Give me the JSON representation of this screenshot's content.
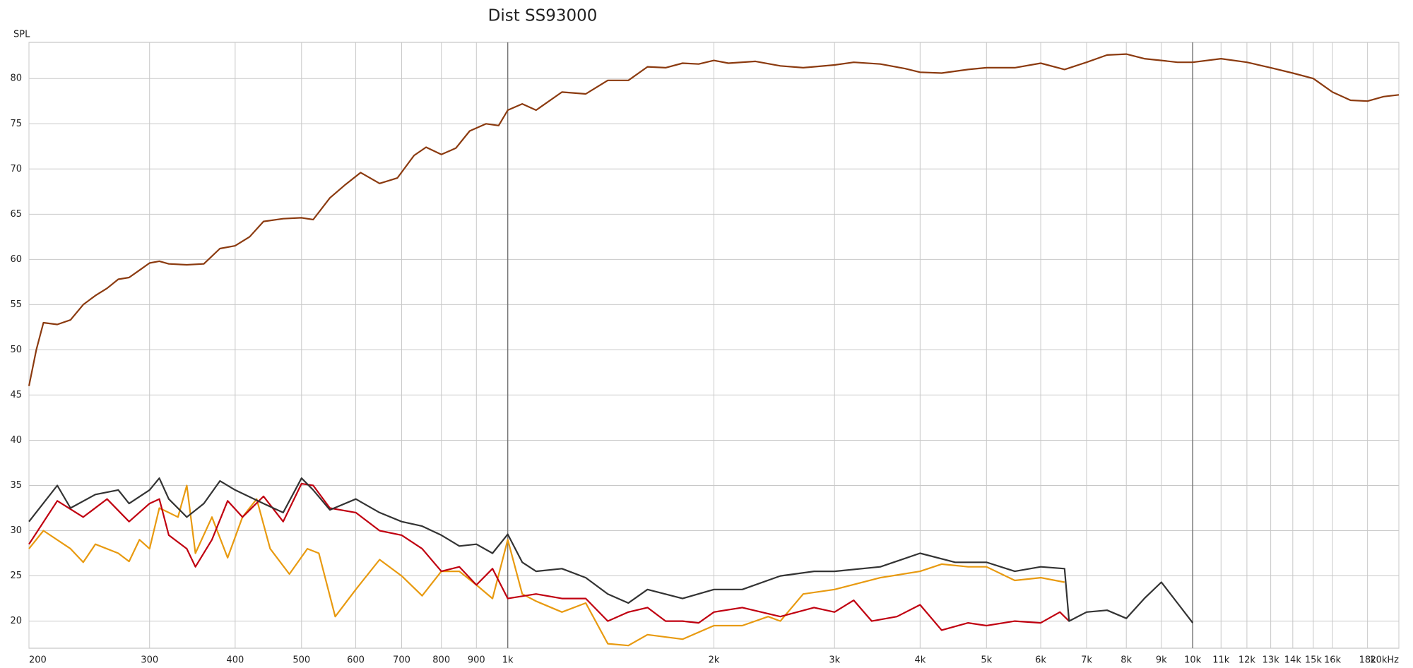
{
  "chart_data": {
    "type": "line",
    "title": "Dist SS93000",
    "y_label": "SPL",
    "xlog": true,
    "grid": true,
    "xlim": [
      200,
      20000
    ],
    "ylim": [
      17,
      84
    ],
    "xticks": [
      {
        "value": 200,
        "label": "200"
      },
      {
        "value": 300,
        "label": "300"
      },
      {
        "value": 400,
        "label": "400"
      },
      {
        "value": 500,
        "label": "500"
      },
      {
        "value": 600,
        "label": "600"
      },
      {
        "value": 700,
        "label": "700"
      },
      {
        "value": 800,
        "label": "800"
      },
      {
        "value": 900,
        "label": "900"
      },
      {
        "value": 1000,
        "label": "1k"
      },
      {
        "value": 2000,
        "label": "2k"
      },
      {
        "value": 3000,
        "label": "3k"
      },
      {
        "value": 4000,
        "label": "4k"
      },
      {
        "value": 5000,
        "label": "5k"
      },
      {
        "value": 6000,
        "label": "6k"
      },
      {
        "value": 7000,
        "label": "7k"
      },
      {
        "value": 8000,
        "label": "8k"
      },
      {
        "value": 9000,
        "label": "9k"
      },
      {
        "value": 10000,
        "label": "10k"
      },
      {
        "value": 11000,
        "label": "11k"
      },
      {
        "value": 12000,
        "label": "12k"
      },
      {
        "value": 13000,
        "label": "13k"
      },
      {
        "value": 14000,
        "label": "14k"
      },
      {
        "value": 15000,
        "label": "15k"
      },
      {
        "value": 16000,
        "label": "16k"
      },
      {
        "value": 18000,
        "label": "18k"
      },
      {
        "value": 20000,
        "label": "20kHz"
      }
    ],
    "yticks": [
      20,
      25,
      30,
      35,
      40,
      45,
      50,
      55,
      60,
      65,
      70,
      75,
      80
    ],
    "series": [
      {
        "color": "#8b3a0f",
        "x": [
          200,
          205,
          210,
          220,
          230,
          240,
          250,
          260,
          270,
          280,
          290,
          300,
          310,
          320,
          340,
          360,
          380,
          400,
          420,
          440,
          470,
          500,
          520,
          550,
          580,
          610,
          650,
          690,
          730,
          760,
          800,
          840,
          880,
          930,
          970,
          1000,
          1050,
          1100,
          1200,
          1300,
          1400,
          1500,
          1600,
          1700,
          1800,
          1900,
          2000,
          2100,
          2300,
          2500,
          2700,
          3000,
          3200,
          3500,
          3800,
          4000,
          4300,
          4700,
          5000,
          5500,
          6000,
          6500,
          7000,
          7500,
          8000,
          8500,
          9000,
          9500,
          10000,
          11000,
          12000,
          13000,
          14000,
          15000,
          16000,
          17000,
          18000,
          19000,
          20000
        ],
        "values": [
          46,
          50,
          53,
          52.8,
          53.3,
          55,
          56,
          56.8,
          57.8,
          58,
          58.8,
          59.6,
          59.8,
          59.5,
          59.4,
          59.5,
          61.2,
          61.5,
          62.5,
          64.2,
          64.5,
          64.6,
          64.4,
          66.8,
          68.3,
          69.6,
          68.4,
          69,
          71.5,
          72.4,
          71.6,
          72.3,
          74.2,
          75,
          74.8,
          76.5,
          77.2,
          76.5,
          78.5,
          78.3,
          79.8,
          79.8,
          81.3,
          81.2,
          81.7,
          81.6,
          82,
          81.7,
          81.9,
          81.4,
          81.2,
          81.5,
          81.8,
          81.6,
          81.1,
          80.7,
          80.6,
          81,
          81.2,
          81.2,
          81.7,
          81,
          81.8,
          82.6,
          82.7,
          82.2,
          82,
          81.8,
          81.8,
          82.2,
          81.8,
          81.2,
          80.6,
          80,
          78.5,
          77.6,
          77.5,
          78,
          78.2
        ]
      },
      {
        "color": "#333333",
        "x": [
          200,
          220,
          230,
          250,
          270,
          280,
          300,
          310,
          320,
          340,
          360,
          380,
          400,
          440,
          470,
          500,
          520,
          550,
          600,
          650,
          700,
          750,
          800,
          850,
          900,
          950,
          1000,
          1050,
          1100,
          1200,
          1300,
          1400,
          1500,
          1600,
          1800,
          2000,
          2200,
          2500,
          2800,
          3000,
          3500,
          4000,
          4500,
          5000,
          5500,
          6000,
          6500,
          6600,
          7000,
          7500,
          8000,
          8500,
          9000,
          9500,
          10000
        ],
        "values": [
          31,
          35,
          32.5,
          34,
          34.5,
          33,
          34.5,
          35.8,
          33.5,
          31.5,
          33,
          35.5,
          34.5,
          33,
          32,
          35.8,
          34.5,
          32.3,
          33.5,
          32,
          31,
          30.5,
          29.5,
          28.3,
          28.5,
          27.5,
          29.6,
          26.5,
          25.5,
          25.8,
          24.8,
          23,
          22,
          23.5,
          22.5,
          23.5,
          23.5,
          25,
          25.5,
          25.5,
          26,
          27.5,
          26.5,
          26.5,
          25.5,
          26,
          25.8,
          20,
          21,
          21.2,
          20.3,
          22.5,
          24.3,
          22,
          19.8
        ]
      },
      {
        "color": "#c00010",
        "x": [
          200,
          220,
          240,
          260,
          280,
          300,
          310,
          320,
          340,
          350,
          370,
          390,
          410,
          440,
          470,
          500,
          520,
          550,
          600,
          650,
          700,
          750,
          800,
          850,
          900,
          950,
          1000,
          1100,
          1200,
          1300,
          1400,
          1500,
          1600,
          1700,
          1800,
          1900,
          2000,
          2200,
          2500,
          2800,
          3000,
          3200,
          3400,
          3700,
          4000,
          4300,
          4700,
          5000,
          5500,
          6000,
          6400,
          6600
        ],
        "values": [
          28.5,
          33.3,
          31.5,
          33.5,
          31,
          33,
          33.5,
          29.5,
          28,
          26,
          29,
          33.3,
          31.5,
          33.8,
          31,
          35.2,
          35,
          32.5,
          32,
          30,
          29.5,
          28,
          25.5,
          26,
          24,
          25.8,
          22.5,
          23,
          22.5,
          22.5,
          20,
          21,
          21.5,
          20,
          20,
          19.8,
          21,
          21.5,
          20.5,
          21.5,
          21,
          22.3,
          20,
          20.5,
          21.8,
          19,
          19.8,
          19.5,
          20,
          19.8,
          21,
          20
        ]
      },
      {
        "color": "#e89a10",
        "x": [
          200,
          210,
          230,
          240,
          250,
          270,
          280,
          290,
          300,
          310,
          320,
          330,
          340,
          350,
          370,
          390,
          410,
          430,
          450,
          480,
          510,
          530,
          560,
          600,
          650,
          700,
          750,
          800,
          850,
          900,
          950,
          1000,
          1050,
          1100,
          1200,
          1300,
          1400,
          1500,
          1600,
          1800,
          2000,
          2200,
          2400,
          2500,
          2700,
          3000,
          3500,
          4000,
          4300,
          4700,
          5000,
          5500,
          6000,
          6500
        ],
        "values": [
          28,
          30,
          28,
          26.5,
          28.5,
          27.5,
          26.6,
          29,
          28,
          32.5,
          32,
          31.5,
          35,
          27.5,
          31.5,
          27,
          31.5,
          33.5,
          28,
          25.2,
          28,
          27.5,
          20.5,
          23.5,
          26.8,
          25,
          22.8,
          25.5,
          25.5,
          24,
          22.5,
          29,
          23,
          22.2,
          21,
          22,
          17.5,
          17.3,
          18.5,
          18,
          19.5,
          19.5,
          20.5,
          20,
          23,
          23.5,
          24.8,
          25.5,
          26.3,
          26,
          26,
          24.5,
          24.8,
          24.3
        ]
      }
    ]
  }
}
